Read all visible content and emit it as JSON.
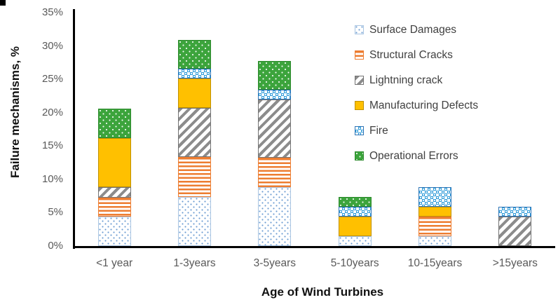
{
  "chart_data": {
    "type": "bar",
    "stacked": true,
    "xlabel": "Age of Wind Turbines",
    "ylabel": "Failure mechanisms, %",
    "ylim": [
      0,
      35
    ],
    "grid": false,
    "legend_position": "top-right",
    "categories": [
      "<1 year",
      "1-3years",
      "3-5years",
      "5-10years",
      "10-15years",
      ">15years"
    ],
    "yticks": [
      {
        "label": "0%",
        "value": 0
      },
      {
        "label": "5%",
        "value": 5
      },
      {
        "label": "10%",
        "value": 10
      },
      {
        "label": "15%",
        "value": 15
      },
      {
        "label": "20%",
        "value": 20
      },
      {
        "label": "25%",
        "value": 25
      },
      {
        "label": "30%",
        "value": 30
      },
      {
        "label": "35%",
        "value": 35
      }
    ],
    "series": [
      {
        "name": "Surface Damages",
        "pattern": "surface",
        "color": "#6b9bd2",
        "values": [
          4.4,
          7.4,
          8.8,
          1.5,
          1.5,
          0
        ]
      },
      {
        "name": "Structural Cracks",
        "pattern": "structural",
        "color": "#ED7D31",
        "values": [
          2.9,
          5.9,
          4.4,
          0,
          2.9,
          0
        ]
      },
      {
        "name": "Lightning crack",
        "pattern": "lightning",
        "color": "#8c8c8c",
        "values": [
          1.5,
          7.4,
          8.8,
          0,
          0,
          4.4
        ]
      },
      {
        "name": "Manufacturing Defects",
        "pattern": "manufacturing",
        "color": "#FFC000",
        "values": [
          7.4,
          4.4,
          0,
          2.9,
          1.5,
          0
        ]
      },
      {
        "name": "Fire",
        "pattern": "fire",
        "color": "#2e9ad8",
        "values": [
          0,
          1.5,
          1.4,
          1.5,
          2.9,
          1.5
        ]
      },
      {
        "name": "Operational Errors",
        "pattern": "operational",
        "color": "#3ca43c",
        "values": [
          4.4,
          4.3,
          4.4,
          1.5,
          0,
          0
        ]
      }
    ]
  }
}
